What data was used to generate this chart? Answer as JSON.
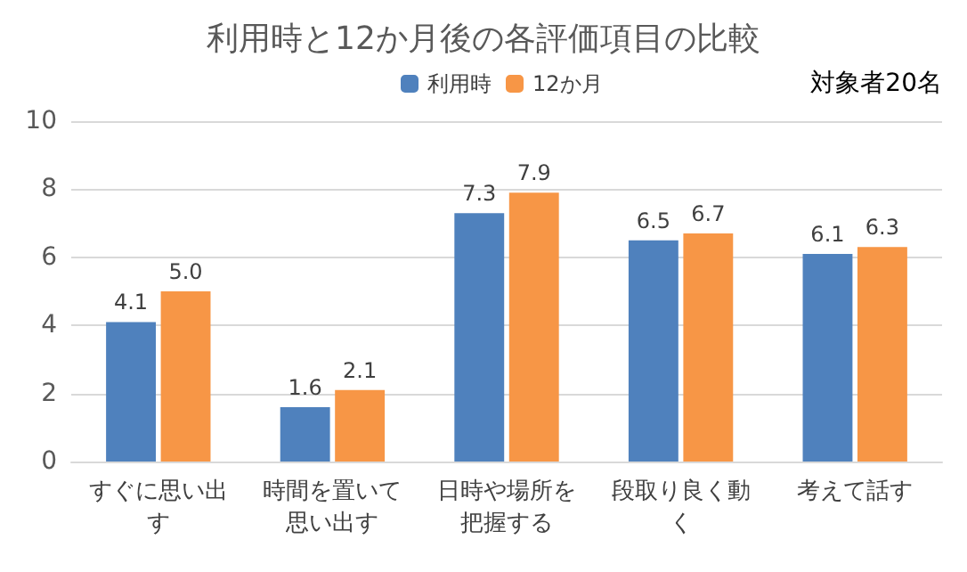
{
  "chart_data": {
    "type": "bar",
    "title": "利用時と12か月後の各評価項目の比較",
    "categories": [
      "すぐに思い出す",
      "時間を置いて思い出す",
      "日時や場所を把握する",
      "段取り良く動く",
      "考えて話す"
    ],
    "series": [
      {
        "name": "利用時",
        "color": "#4f81bd",
        "values": [
          4.1,
          1.6,
          7.3,
          6.5,
          6.1
        ],
        "value_labels": [
          "4.1",
          "1.6",
          "7.3",
          "6.5",
          "6.1"
        ]
      },
      {
        "name": "12か月",
        "color": "#f79646",
        "values": [
          5.0,
          2.1,
          7.9,
          6.7,
          6.3
        ],
        "value_labels": [
          "5.0",
          "2.1",
          "7.9",
          "6.7",
          "6.3"
        ]
      }
    ],
    "ylim": [
      0,
      10
    ],
    "yticks": [
      0,
      2,
      4,
      6,
      8,
      10
    ],
    "grid": "y",
    "legend": "top",
    "annotations": [
      "対象者20名"
    ]
  }
}
